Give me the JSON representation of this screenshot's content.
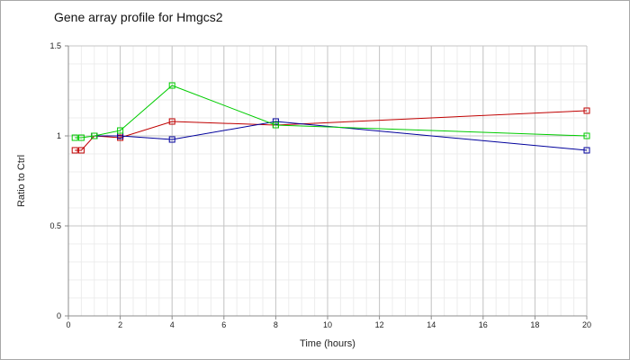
{
  "chart_data": {
    "type": "line",
    "title": "Gene array profile for Hmgcs2",
    "xlabel": "Time (hours)",
    "ylabel": "Ratio to Ctrl",
    "xlim": [
      0,
      20
    ],
    "ylim": [
      0,
      1.5
    ],
    "x_ticks": [
      "0",
      "2",
      "4",
      "6",
      "8",
      "10",
      "12",
      "14",
      "16",
      "18",
      "20"
    ],
    "y_ticks": [
      "0",
      "0.5",
      "1",
      "1.5"
    ],
    "grid": true,
    "legend": "none",
    "series": [
      {
        "color": "#c00000",
        "marker": "square",
        "x": [
          0.25,
          0.5,
          1,
          2,
          4,
          8,
          20
        ],
        "y": [
          0.92,
          0.92,
          1.0,
          0.99,
          1.08,
          1.06,
          1.14
        ]
      },
      {
        "color": "#00009c",
        "marker": "square",
        "x": [
          1,
          2,
          4,
          8,
          20
        ],
        "y": [
          1.0,
          1.0,
          0.98,
          1.08,
          0.92
        ]
      },
      {
        "color": "#00cc00",
        "marker": "square",
        "x": [
          0.25,
          0.5,
          1,
          2,
          4,
          8,
          20
        ],
        "y": [
          0.99,
          0.99,
          1.0,
          1.03,
          1.28,
          1.06,
          1.0
        ]
      }
    ]
  }
}
